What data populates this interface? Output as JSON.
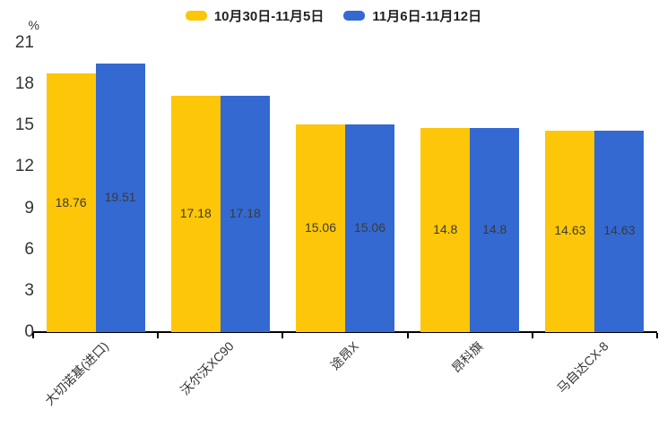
{
  "chart_data": {
    "type": "bar",
    "title": "",
    "ylabel": "%",
    "categories": [
      "大切诺基(进口)",
      "沃尔沃XC90",
      "途昂X",
      "昂科旗",
      "马自达CX-8"
    ],
    "series": [
      {
        "name": "10月30日-11月5日",
        "color": "#FDC608",
        "values": [
          18.76,
          17.18,
          15.06,
          14.8,
          14.63
        ]
      },
      {
        "name": "11月6日-11月12日",
        "color": "#3469D1",
        "values": [
          19.51,
          17.18,
          15.06,
          14.8,
          14.63
        ]
      }
    ],
    "ylim": [
      0,
      21
    ],
    "yticks": [
      0,
      3,
      6,
      9,
      12,
      15,
      18,
      21
    ],
    "grid": false,
    "legend_position": "top",
    "value_labels": true,
    "value_label_color": "#3a3a3a",
    "axis_color": "#000000",
    "text_color": "#333333"
  }
}
